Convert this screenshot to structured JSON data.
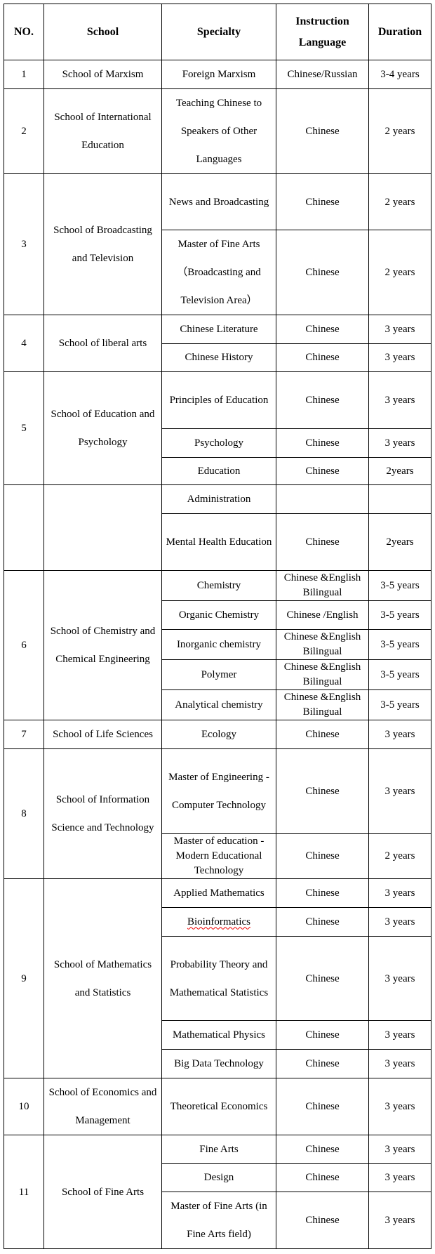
{
  "header": {
    "no": "NO.",
    "school": "School",
    "specialty": "Specialty",
    "language": "Instruction Language",
    "duration": "Duration"
  },
  "groups": [
    {
      "no": "1",
      "school": "School of Marxism",
      "items": [
        {
          "specialty": "Foreign Marxism",
          "language": "Chinese/Russian",
          "duration": "3-4 years"
        }
      ]
    },
    {
      "no": "2",
      "school": "School of International Education",
      "items": [
        {
          "specialty": "Teaching Chinese to Speakers of Other Languages",
          "language": "Chinese",
          "duration": "2 years"
        }
      ]
    },
    {
      "no": "3",
      "school": "School of Broadcasting and Television",
      "items": [
        {
          "specialty": "News and Broadcasting",
          "language": "Chinese",
          "duration": "2 years"
        },
        {
          "specialty": "Master of Fine Arts （Broadcasting and Television Area）",
          "language": "Chinese",
          "duration": "2 years"
        }
      ]
    },
    {
      "no": "4",
      "school": "School of liberal arts",
      "items": [
        {
          "specialty": "Chinese Literature",
          "language": "Chinese",
          "duration": "3 years"
        },
        {
          "specialty": "Chinese History",
          "language": "Chinese",
          "duration": "3 years"
        }
      ]
    },
    {
      "no": "5",
      "school": "School of Education and Psychology",
      "items": [
        {
          "specialty": "Principles of Education",
          "language": "Chinese",
          "duration": "3 years"
        },
        {
          "specialty": "Psychology",
          "language": "Chinese",
          "duration": "3 years"
        },
        {
          "specialty": "Education",
          "language": "Chinese",
          "duration": "2years"
        }
      ]
    },
    {
      "no": "",
      "school": "",
      "items": [
        {
          "specialty": "Administration",
          "language": "",
          "duration": ""
        },
        {
          "specialty": "Mental Health Education",
          "language": "Chinese",
          "duration": "2years"
        }
      ]
    },
    {
      "no": "6",
      "school": "School of Chemistry and Chemical Engineering",
      "items": [
        {
          "specialty": "Chemistry",
          "language": "Chinese &English Bilingual",
          "duration": "3-5 years"
        },
        {
          "specialty": "Organic Chemistry",
          "language": "Chinese /English",
          "duration": "3-5 years"
        },
        {
          "specialty": "Inorganic chemistry",
          "language": "Chinese &English Bilingual",
          "duration": "3-5 years"
        },
        {
          "specialty": "Polymer",
          "language": "Chinese &English Bilingual",
          "duration": "3-5 years"
        },
        {
          "specialty": "Analytical chemistry",
          "language": "Chinese &English Bilingual",
          "duration": "3-5 years"
        }
      ]
    },
    {
      "no": "7",
      "school": "School of Life Sciences",
      "items": [
        {
          "specialty": "Ecology",
          "language": "Chinese",
          "duration": "3 years"
        }
      ]
    },
    {
      "no": "8",
      "school": "School of Information Science and Technology",
      "items": [
        {
          "specialty": "Master of Engineering - Computer Technology",
          "language": "Chinese",
          "duration": "3 years"
        },
        {
          "specialty": "Master of education - Modern Educational Technology",
          "language": "Chinese",
          "duration": "2 years"
        }
      ]
    },
    {
      "no": "9",
      "school": "School of Mathematics and Statistics",
      "items": [
        {
          "specialty": "Applied Mathematics",
          "language": "Chinese",
          "duration": "3 years"
        },
        {
          "specialty": "Bioinformatics",
          "language": "Chinese",
          "duration": "3 years"
        },
        {
          "specialty": "Probability Theory and Mathematical Statistics",
          "language": "Chinese",
          "duration": "3 years"
        },
        {
          "specialty": "Mathematical Physics",
          "language": "Chinese",
          "duration": "3 years"
        },
        {
          "specialty": "Big Data Technology",
          "language": "Chinese",
          "duration": "3 years"
        }
      ]
    },
    {
      "no": "10",
      "school": "School of Economics and Management",
      "items": [
        {
          "specialty": "Theoretical Economics",
          "language": "Chinese",
          "duration": "3 years"
        }
      ]
    },
    {
      "no": "11",
      "school": "School of Fine Arts",
      "items": [
        {
          "specialty": "Fine Arts",
          "language": "Chinese",
          "duration": "3 years"
        },
        {
          "specialty": "Design",
          "language": "Chinese",
          "duration": "3 years"
        },
        {
          "specialty": "Master of Fine Arts (in Fine Arts field)",
          "language": "Chinese",
          "duration": "3 years"
        }
      ]
    }
  ]
}
